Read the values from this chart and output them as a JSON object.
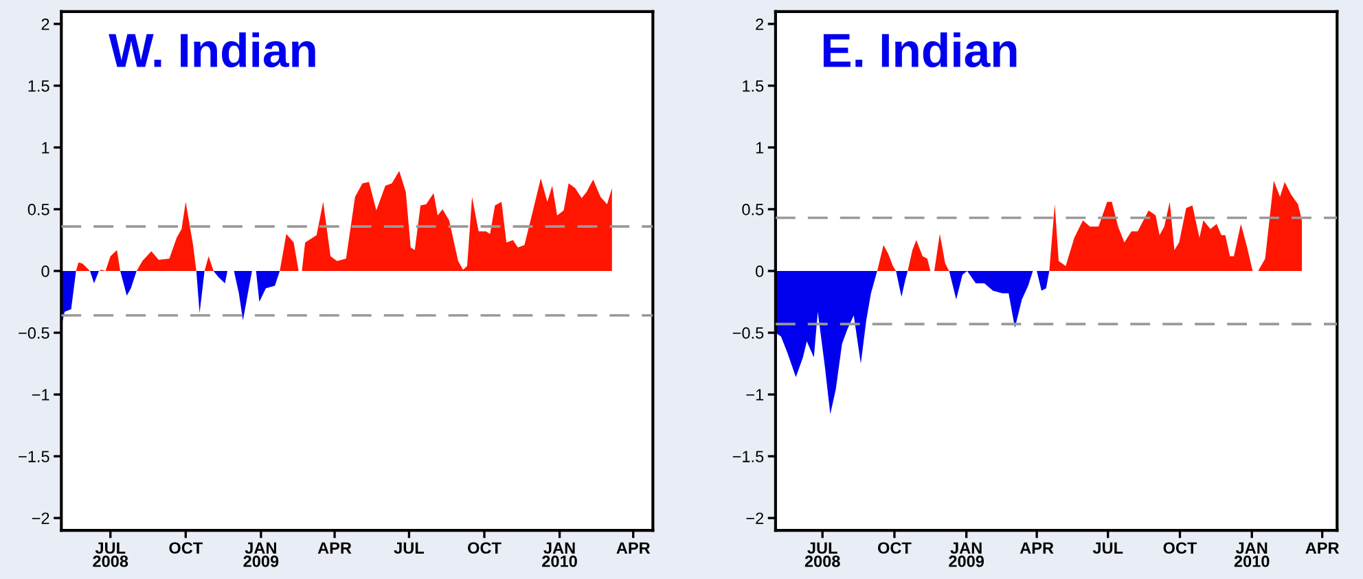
{
  "chart_data": [
    {
      "type": "area",
      "title": "W. Indian",
      "xlim": [
        "2008-05-02",
        "2010-04-25"
      ],
      "ylim": [
        -2.1,
        2.1
      ],
      "yticks": [
        {
          "value": -2,
          "label": "−2"
        },
        {
          "value": -1.5,
          "label": "−1.5"
        },
        {
          "value": -1,
          "label": "−1"
        },
        {
          "value": -0.5,
          "label": "−0.5"
        },
        0,
        0.5,
        1,
        1.5,
        2
      ],
      "xticks": [
        {
          "value": "2008-07-01",
          "label": "JUL\n2008"
        },
        {
          "value": "2008-10-01",
          "label": "OCT"
        },
        {
          "value": "2009-01-01",
          "label": "JAN\n2009"
        },
        {
          "value": "2009-04-01",
          "label": "APR"
        },
        {
          "value": "2009-07-01",
          "label": "JUL"
        },
        {
          "value": "2009-10-01",
          "label": "OCT"
        },
        {
          "value": "2010-01-01",
          "label": "JAN\n2010"
        },
        {
          "value": "2010-04-01",
          "label": "APR"
        }
      ],
      "ref_lines": [
        {
          "axis": "y",
          "value": 0.36,
          "color": "#999999",
          "line_style": "dashed"
        },
        {
          "axis": "y",
          "value": -0.36,
          "color": "#999999",
          "line_style": "dashed"
        }
      ],
      "grid": false,
      "legend": false,
      "x": [
        "2008-05-02",
        "2008-05-06",
        "2008-05-14",
        "2008-05-20",
        "2008-05-23",
        "2008-05-28",
        "2008-06-06",
        "2008-06-11",
        "2008-06-17",
        "2008-06-20",
        "2008-06-25",
        "2008-07-01",
        "2008-07-09",
        "2008-07-13",
        "2008-07-21",
        "2008-07-26",
        "2008-08-02",
        "2008-08-09",
        "2008-08-20",
        "2008-08-29",
        "2008-09-11",
        "2008-09-20",
        "2008-09-26",
        "2008-10-01",
        "2008-10-10",
        "2008-10-14",
        "2008-10-18",
        "2008-10-24",
        "2008-10-29",
        "2008-11-04",
        "2008-11-10",
        "2008-11-18",
        "2008-11-21",
        "2008-11-23",
        "2008-11-29",
        "2008-12-05",
        "2008-12-10",
        "2008-12-16",
        "2008-12-21",
        "2008-12-24",
        "2008-12-26",
        "2008-12-30",
        "2009-01-07",
        "2009-01-18",
        "2009-01-24",
        "2009-02-01",
        "2009-02-10",
        "2009-02-16",
        "2009-02-18",
        "2009-02-20",
        "2009-02-24",
        "2009-03-10",
        "2009-03-18",
        "2009-03-27",
        "2009-04-04",
        "2009-04-15",
        "2009-04-26",
        "2009-05-05",
        "2009-05-13",
        "2009-05-22",
        "2009-06-02",
        "2009-06-10",
        "2009-06-19",
        "2009-06-27",
        "2009-07-03",
        "2009-07-08",
        "2009-07-15",
        "2009-07-22",
        "2009-07-31",
        "2009-08-05",
        "2009-08-11",
        "2009-08-19",
        "2009-08-30",
        "2009-09-05",
        "2009-09-10",
        "2009-09-16",
        "2009-09-24",
        "2009-10-03",
        "2009-10-08",
        "2009-10-14",
        "2009-10-22",
        "2009-10-28",
        "2009-11-05",
        "2009-11-11",
        "2009-11-19",
        "2009-11-28",
        "2009-12-09",
        "2009-12-17",
        "2009-12-23",
        "2009-12-29",
        "2010-01-06",
        "2010-01-12",
        "2010-01-20",
        "2010-01-28",
        "2010-02-03",
        "2010-02-11",
        "2010-02-20",
        "2010-02-28",
        "2010-03-06"
      ],
      "series": [
        {
          "color": "#ff1500",
          "values": [
            null,
            null,
            null,
            0,
            0.07,
            0.06,
            0,
            null,
            0,
            0.01,
            0,
            0.12,
            0.17,
            0,
            null,
            null,
            0,
            0.08,
            0.16,
            0.09,
            0.1,
            0.27,
            0.34,
            0.56,
            0.21,
            0,
            null,
            0,
            0.12,
            0,
            null,
            null,
            null,
            null,
            null,
            null,
            null,
            null,
            null,
            null,
            null,
            null,
            null,
            null,
            0,
            0.3,
            0.23,
            0,
            null,
            0,
            0.23,
            0.29,
            0.56,
            0.12,
            0.08,
            0.1,
            0.6,
            0.71,
            0.72,
            0.49,
            0.69,
            0.71,
            0.81,
            0.64,
            0.19,
            0.17,
            0.53,
            0.54,
            0.63,
            0.45,
            0.5,
            0.41,
            0.08,
            0.01,
            0.04,
            0.6,
            0.32,
            0.32,
            0.3,
            0.53,
            0.56,
            0.23,
            0.25,
            0.19,
            0.21,
            0.45,
            0.75,
            0.56,
            0.69,
            0.45,
            0.49,
            0.71,
            0.67,
            0.59,
            0.64,
            0.74,
            0.6,
            0.54,
            0.67
          ]
        },
        {
          "color": "#0000ee",
          "values": [
            -0.45,
            -0.33,
            -0.31,
            0,
            null,
            null,
            0,
            -0.1,
            0,
            null,
            null,
            null,
            null,
            0,
            -0.2,
            -0.14,
            0,
            null,
            null,
            null,
            null,
            null,
            null,
            null,
            null,
            0,
            -0.34,
            0,
            null,
            0,
            -0.05,
            -0.1,
            0,
            null,
            0,
            -0.18,
            -0.4,
            -0.18,
            0,
            null,
            0,
            -0.25,
            -0.14,
            -0.12,
            0,
            null,
            null,
            null,
            null,
            null,
            null,
            null,
            null,
            null,
            null,
            null,
            null,
            null,
            null,
            null,
            null,
            null,
            null,
            null,
            null,
            null,
            null,
            null,
            null,
            null,
            null,
            null,
            null,
            null,
            null,
            null,
            null,
            null,
            null,
            null,
            null,
            null,
            null,
            null,
            null,
            null,
            null,
            null,
            null,
            null,
            null,
            null,
            null,
            null,
            null,
            null,
            null,
            null,
            null
          ]
        }
      ]
    },
    {
      "type": "area",
      "title": "E. Indian",
      "xlim": [
        "2008-05-02",
        "2010-04-20"
      ],
      "ylim": [
        -2.1,
        2.1
      ],
      "yticks": [
        {
          "value": -2,
          "label": "−2"
        },
        {
          "value": -1.5,
          "label": "−1.5"
        },
        {
          "value": -1,
          "label": "−1"
        },
        {
          "value": -0.5,
          "label": "−0.5"
        },
        0,
        0.5,
        1,
        1.5,
        2
      ],
      "xticks": [
        {
          "value": "2008-07-01",
          "label": "JUL\n2008"
        },
        {
          "value": "2008-10-01",
          "label": "OCT"
        },
        {
          "value": "2009-01-01",
          "label": "JAN\n2009"
        },
        {
          "value": "2009-04-01",
          "label": "APR"
        },
        {
          "value": "2009-07-01",
          "label": "JUL"
        },
        {
          "value": "2009-10-01",
          "label": "OCT"
        },
        {
          "value": "2010-01-01",
          "label": "JAN\n2010"
        },
        {
          "value": "2010-04-01",
          "label": "APR"
        }
      ],
      "ref_lines": [
        {
          "axis": "y",
          "value": 0.43,
          "color": "#999999",
          "line_style": "dashed"
        },
        {
          "axis": "y",
          "value": -0.43,
          "color": "#999999",
          "line_style": "dashed"
        }
      ],
      "grid": false,
      "legend": false,
      "x": [
        "2008-05-02",
        "2008-05-09",
        "2008-05-17",
        "2008-05-28",
        "2008-06-06",
        "2008-06-11",
        "2008-06-20",
        "2008-06-25",
        "2008-07-04",
        "2008-07-11",
        "2008-07-18",
        "2008-07-26",
        "2008-08-02",
        "2008-08-10",
        "2008-08-19",
        "2008-08-26",
        "2008-09-01",
        "2008-09-09",
        "2008-09-17",
        "2008-09-23",
        "2008-09-29",
        "2008-10-03",
        "2008-10-10",
        "2008-10-15",
        "2008-10-18",
        "2008-10-24",
        "2008-10-29",
        "2008-11-06",
        "2008-11-12",
        "2008-11-16",
        "2008-11-18",
        "2008-11-21",
        "2008-11-28",
        "2008-12-05",
        "2008-12-10",
        "2008-12-19",
        "2008-12-27",
        "2009-01-02",
        "2009-01-13",
        "2009-01-24",
        "2009-02-04",
        "2009-02-16",
        "2009-02-24",
        "2009-03-04",
        "2009-03-13",
        "2009-03-21",
        "2009-03-27",
        "2009-04-01",
        "2009-04-07",
        "2009-04-13",
        "2009-04-17",
        "2009-04-24",
        "2009-04-29",
        "2009-05-08",
        "2009-05-19",
        "2009-05-30",
        "2009-06-08",
        "2009-06-19",
        "2009-06-30",
        "2009-07-06",
        "2009-07-14",
        "2009-07-22",
        "2009-07-31",
        "2009-08-08",
        "2009-08-22",
        "2009-08-31",
        "2009-09-05",
        "2009-09-11",
        "2009-09-18",
        "2009-09-24",
        "2009-09-30",
        "2009-10-09",
        "2009-10-17",
        "2009-10-26",
        "2009-10-31",
        "2009-11-09",
        "2009-11-17",
        "2009-11-23",
        "2009-11-28",
        "2009-12-04",
        "2009-12-09",
        "2009-12-18",
        "2009-12-26",
        "2010-01-02",
        "2010-01-09",
        "2010-01-18",
        "2010-01-29",
        "2010-02-06",
        "2010-02-12",
        "2010-02-20",
        "2010-03-01",
        "2010-03-06"
      ],
      "series": [
        {
          "color": "#ff1500",
          "values": [
            null,
            null,
            null,
            null,
            null,
            null,
            null,
            null,
            null,
            null,
            null,
            null,
            null,
            null,
            null,
            null,
            null,
            0,
            0.21,
            0.14,
            0.04,
            0,
            null,
            null,
            0,
            0.17,
            0.25,
            0.12,
            0.1,
            0,
            null,
            0,
            0.3,
            0.06,
            0,
            null,
            null,
            null,
            null,
            null,
            null,
            null,
            null,
            null,
            null,
            null,
            null,
            null,
            null,
            null,
            0,
            0.54,
            0.08,
            0.04,
            0.27,
            0.41,
            0.36,
            0.36,
            0.56,
            0.56,
            0.36,
            0.23,
            0.32,
            0.32,
            0.49,
            0.45,
            0.29,
            0.36,
            0.56,
            0.17,
            0.23,
            0.51,
            0.53,
            0.27,
            0.41,
            0.34,
            0.38,
            0.29,
            0.29,
            0.12,
            0.12,
            0.38,
            0.19,
            0,
            0,
            0.1,
            0.73,
            0.6,
            0.72,
            0.62,
            0.54,
            0.41
          ]
        },
        {
          "color": "#0000ee",
          "values": [
            -0.5,
            -0.53,
            -0.66,
            -0.86,
            -0.7,
            -0.57,
            -0.7,
            -0.33,
            -0.77,
            -1.16,
            -0.96,
            -0.59,
            -0.47,
            -0.36,
            -0.75,
            -0.4,
            -0.18,
            0,
            null,
            null,
            null,
            0,
            -0.21,
            -0.07,
            0,
            null,
            null,
            null,
            null,
            null,
            null,
            null,
            null,
            null,
            0,
            -0.23,
            -0.03,
            0,
            -0.1,
            -0.1,
            -0.16,
            -0.18,
            -0.18,
            -0.46,
            -0.23,
            -0.12,
            0,
            0,
            -0.16,
            -0.14,
            0,
            null,
            null,
            null,
            null,
            null,
            null,
            null,
            null,
            null,
            null,
            null,
            null,
            null,
            null,
            null,
            null,
            null,
            null,
            null,
            null,
            null,
            null,
            null,
            null,
            null,
            null,
            null,
            null,
            null,
            null,
            null,
            null,
            null,
            null,
            null,
            null,
            null,
            null,
            null,
            null,
            null
          ]
        }
      ]
    }
  ]
}
